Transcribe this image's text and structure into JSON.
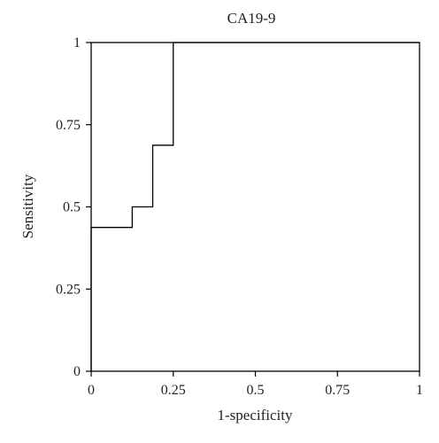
{
  "chart_data": {
    "type": "line",
    "title": "CA19-9",
    "xlabel": "1-specificity",
    "ylabel": "Sensitivity",
    "xlim": [
      0,
      1
    ],
    "ylim": [
      0,
      1
    ],
    "x_ticks": [
      "0",
      "0.25",
      "0.5",
      "0.75",
      "1"
    ],
    "y_ticks": [
      "0",
      "0.25",
      "0.5",
      "0.75",
      "1"
    ],
    "grid": false,
    "legend": "none",
    "series": [
      {
        "line_style": "step",
        "x": [
          0,
          0,
          0.125,
          0.125,
          0.1875,
          0.1875,
          0.25,
          0.25,
          1
        ],
        "y": [
          0,
          0.4375,
          0.4375,
          0.5,
          0.5,
          0.6875,
          0.6875,
          1,
          1
        ]
      }
    ]
  }
}
